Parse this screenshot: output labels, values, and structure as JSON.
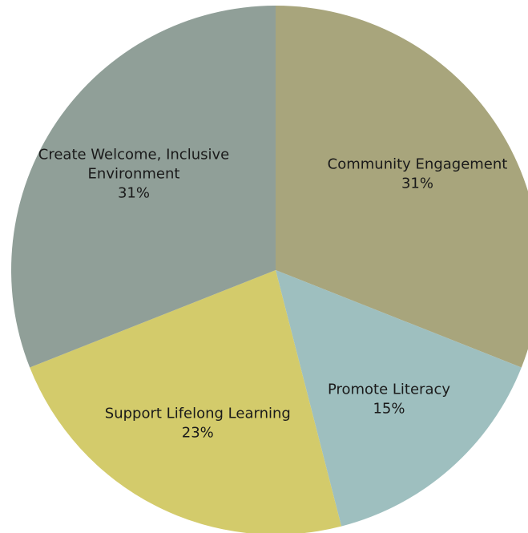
{
  "chart_data": {
    "type": "pie",
    "title": "",
    "slices": [
      {
        "label_lines": [
          "Community Engagement"
        ],
        "percent_label": "31%",
        "value": 31,
        "color": "#a8a57c"
      },
      {
        "label_lines": [
          "Promote Literacy"
        ],
        "percent_label": "15%",
        "value": 15,
        "color": "#9ebfbf"
      },
      {
        "label_lines": [
          "Support Lifelong Learning"
        ],
        "percent_label": "23%",
        "value": 23,
        "color": "#d3cb6b"
      },
      {
        "label_lines": [
          "Create Welcome, Inclusive",
          "Environment"
        ],
        "percent_label": "31%",
        "value": 31,
        "color": "#909f98"
      }
    ]
  }
}
